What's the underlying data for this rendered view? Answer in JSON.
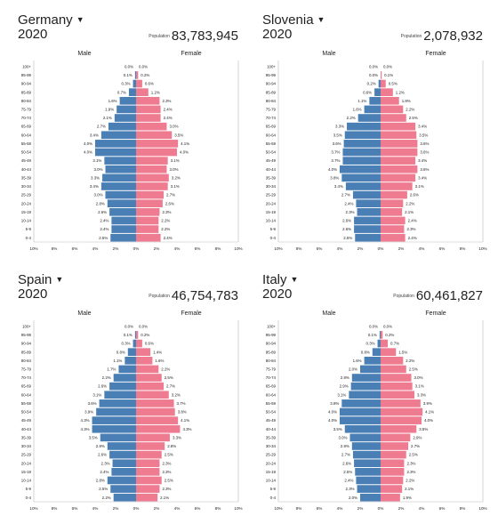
{
  "age_groups": [
    "0-4",
    "5-9",
    "10-14",
    "15-19",
    "20-24",
    "25-29",
    "30-34",
    "35-39",
    "40-44",
    "45-49",
    "50-54",
    "55-59",
    "60-64",
    "65-69",
    "70-74",
    "75-79",
    "80-84",
    "85-89",
    "90-94",
    "95-99",
    "100+"
  ],
  "x_ticks": [
    "10%",
    "8%",
    "6%",
    "4%",
    "2%",
    "0%",
    "2%",
    "4%",
    "6%",
    "8%",
    "10%"
  ],
  "labels": {
    "male": "Male",
    "female": "Female",
    "population": "Population"
  },
  "colors": {
    "male": "#4a7fb5",
    "female": "#ef7b91"
  },
  "chart_data": [
    {
      "type": "bar",
      "title": "Germany",
      "year": "2020",
      "population": "83,783,945",
      "categories": [
        "0-4",
        "5-9",
        "10-14",
        "15-19",
        "20-24",
        "25-29",
        "30-34",
        "35-39",
        "40-44",
        "45-49",
        "50-54",
        "55-59",
        "60-64",
        "65-69",
        "70-74",
        "75-79",
        "80-84",
        "85-89",
        "90-94",
        "95-99",
        "100+"
      ],
      "xlim": [
        -10,
        10
      ],
      "series": [
        {
          "name": "Male",
          "values": [
            2.5,
            2.4,
            2.4,
            2.6,
            2.8,
            3.0,
            3.4,
            3.3,
            3.0,
            3.1,
            4.0,
            4.0,
            3.4,
            2.7,
            2.1,
            1.9,
            1.6,
            0.7,
            0.3,
            0.1,
            0.0
          ]
        },
        {
          "name": "Female",
          "values": [
            2.4,
            2.2,
            2.2,
            2.3,
            2.6,
            2.7,
            3.1,
            3.2,
            3.0,
            3.1,
            4.0,
            4.1,
            3.5,
            3.0,
            2.4,
            2.4,
            2.3,
            1.2,
            0.6,
            0.2,
            0.0
          ]
        }
      ]
    },
    {
      "type": "bar",
      "title": "Slovenia",
      "year": "2020",
      "population": "2,078,932",
      "categories": [
        "0-4",
        "5-9",
        "10-14",
        "15-19",
        "20-24",
        "25-29",
        "30-34",
        "35-39",
        "40-44",
        "45-49",
        "50-54",
        "55-59",
        "60-64",
        "65-69",
        "70-74",
        "75-79",
        "80-84",
        "85-89",
        "90-94",
        "95-99",
        "100+"
      ],
      "xlim": [
        -10,
        10
      ],
      "series": [
        {
          "name": "Male",
          "values": [
            2.5,
            2.6,
            2.6,
            2.3,
            2.4,
            2.7,
            3.4,
            3.8,
            4.0,
            3.7,
            3.7,
            3.6,
            3.5,
            3.3,
            2.2,
            1.6,
            1.1,
            0.6,
            0.2,
            0.0,
            0.0
          ]
        },
        {
          "name": "Female",
          "values": [
            2.4,
            2.3,
            2.4,
            2.1,
            2.2,
            2.6,
            3.1,
            3.4,
            3.6,
            3.4,
            3.6,
            3.6,
            3.5,
            3.4,
            2.5,
            2.2,
            1.8,
            1.2,
            0.5,
            0.1,
            0.0
          ]
        }
      ]
    },
    {
      "type": "bar",
      "title": "Spain",
      "year": "2020",
      "population": "46,754,783",
      "categories": [
        "0-4",
        "5-9",
        "10-14",
        "15-19",
        "20-24",
        "25-29",
        "30-34",
        "35-39",
        "40-44",
        "45-49",
        "50-54",
        "55-59",
        "60-64",
        "65-69",
        "70-74",
        "75-79",
        "80-84",
        "85-89",
        "90-94",
        "95-99",
        "100+"
      ],
      "xlim": [
        -10,
        10
      ],
      "series": [
        {
          "name": "Male",
          "values": [
            2.2,
            2.5,
            2.8,
            2.4,
            2.3,
            2.6,
            2.8,
            3.5,
            4.3,
            4.3,
            3.9,
            3.6,
            3.1,
            2.6,
            2.2,
            1.7,
            1.1,
            0.8,
            0.3,
            0.1,
            0.0
          ]
        },
        {
          "name": "Female",
          "values": [
            2.1,
            2.3,
            2.5,
            2.3,
            2.3,
            2.5,
            2.8,
            3.3,
            4.3,
            4.1,
            3.8,
            3.7,
            3.2,
            2.7,
            2.5,
            2.2,
            1.6,
            1.4,
            0.6,
            0.2,
            0.0
          ]
        }
      ]
    },
    {
      "type": "bar",
      "title": "Italy",
      "year": "2020",
      "population": "60,461,827",
      "categories": [
        "0-4",
        "5-9",
        "10-14",
        "15-19",
        "20-24",
        "25-29",
        "30-34",
        "35-39",
        "40-44",
        "45-49",
        "50-54",
        "55-59",
        "60-64",
        "65-69",
        "70-74",
        "75-79",
        "80-84",
        "85-89",
        "90-94",
        "95-99",
        "100+"
      ],
      "xlim": [
        -10,
        10
      ],
      "series": [
        {
          "name": "Male",
          "values": [
            2.0,
            2.3,
            2.4,
            2.5,
            2.6,
            2.7,
            2.8,
            3.0,
            3.5,
            4.0,
            4.0,
            3.8,
            3.1,
            2.9,
            2.8,
            2.0,
            1.6,
            0.8,
            0.3,
            0.1,
            0.0
          ]
        },
        {
          "name": "Female",
          "values": [
            1.9,
            2.1,
            2.2,
            2.3,
            2.3,
            2.5,
            2.7,
            2.9,
            3.5,
            4.0,
            4.1,
            3.9,
            3.3,
            3.1,
            3.0,
            2.5,
            2.2,
            1.5,
            0.7,
            0.2,
            0.0
          ]
        }
      ]
    }
  ]
}
